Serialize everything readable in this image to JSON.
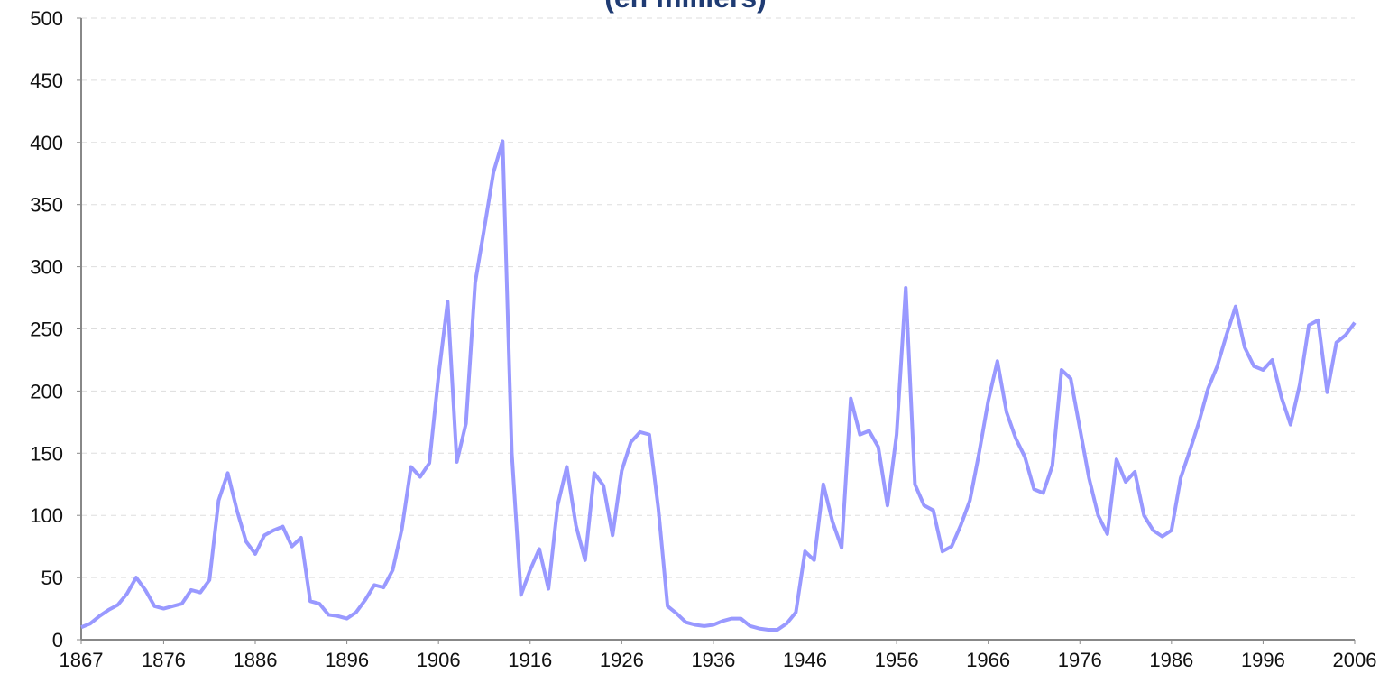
{
  "chart_data": {
    "type": "line",
    "title": "(en milliers)",
    "x": [
      1867,
      1868,
      1869,
      1870,
      1871,
      1872,
      1873,
      1874,
      1875,
      1876,
      1877,
      1878,
      1879,
      1880,
      1881,
      1882,
      1883,
      1884,
      1885,
      1886,
      1887,
      1888,
      1889,
      1890,
      1891,
      1892,
      1893,
      1894,
      1895,
      1896,
      1897,
      1898,
      1899,
      1900,
      1901,
      1902,
      1903,
      1904,
      1905,
      1906,
      1907,
      1908,
      1909,
      1910,
      1911,
      1912,
      1913,
      1914,
      1915,
      1916,
      1917,
      1918,
      1919,
      1920,
      1921,
      1922,
      1923,
      1924,
      1925,
      1926,
      1927,
      1928,
      1929,
      1930,
      1931,
      1932,
      1933,
      1934,
      1935,
      1936,
      1937,
      1938,
      1939,
      1940,
      1941,
      1942,
      1943,
      1944,
      1945,
      1946,
      1947,
      1948,
      1949,
      1950,
      1951,
      1952,
      1953,
      1954,
      1955,
      1956,
      1957,
      1958,
      1959,
      1960,
      1961,
      1962,
      1963,
      1964,
      1965,
      1966,
      1967,
      1968,
      1969,
      1970,
      1971,
      1972,
      1973,
      1974,
      1975,
      1976,
      1977,
      1978,
      1979,
      1980,
      1981,
      1982,
      1983,
      1984,
      1985,
      1986,
      1987,
      1988,
      1989,
      1990,
      1991,
      1992,
      1993,
      1994,
      1995,
      1996,
      1997,
      1998,
      1999,
      2000,
      2001,
      2002,
      2003,
      2004,
      2005,
      2006
    ],
    "values": [
      10,
      13,
      19,
      24,
      28,
      37,
      50,
      40,
      27,
      25,
      27,
      29,
      40,
      38,
      48,
      112,
      134,
      104,
      79,
      69,
      84,
      88,
      91,
      75,
      82,
      31,
      29,
      20,
      19,
      17,
      22,
      32,
      44,
      42,
      56,
      89,
      139,
      131,
      142,
      212,
      272,
      143,
      174,
      287,
      331,
      376,
      401,
      150,
      36,
      56,
      73,
      41,
      108,
      139,
      92,
      64,
      134,
      124,
      84,
      136,
      159,
      167,
      165,
      105,
      27,
      21,
      14,
      12,
      11,
      12,
      15,
      17,
      17,
      11,
      9,
      8,
      8,
      13,
      22,
      71,
      64,
      125,
      95,
      74,
      194,
      165,
      168,
      155,
      108,
      165,
      283,
      125,
      108,
      104,
      71,
      75,
      92,
      112,
      150,
      192,
      224,
      183,
      162,
      147,
      121,
      118,
      140,
      217,
      210,
      170,
      130,
      100,
      85,
      145,
      127,
      135,
      100,
      88,
      83,
      88,
      130,
      152,
      175,
      202,
      220,
      245,
      268,
      235,
      220,
      217,
      225,
      195,
      173,
      205,
      253,
      257,
      199,
      239,
      245,
      255
    ],
    "color": "#9999ff",
    "xlim": [
      1867,
      2006
    ],
    "xticks": [
      1867,
      1876,
      1886,
      1896,
      1906,
      1916,
      1926,
      1936,
      1946,
      1956,
      1966,
      1976,
      1986,
      1996,
      2006
    ],
    "ylim": [
      0,
      500
    ],
    "yticks": [
      0,
      50,
      100,
      150,
      200,
      250,
      300,
      350,
      400,
      450,
      500
    ],
    "grid": true
  }
}
